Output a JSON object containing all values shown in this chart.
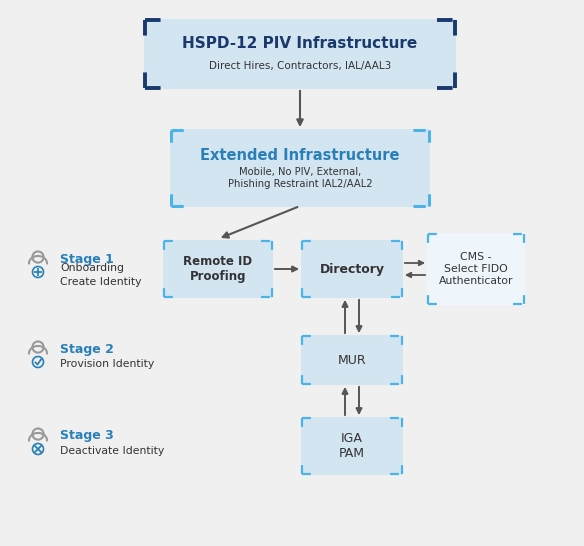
{
  "bg_color": "#f0f0f0",
  "box_fill_light": "#d4e5f2",
  "box_fill_white": "#eef5fb",
  "border_dark_blue": "#1a3a6b",
  "border_light_blue": "#4ab3e8",
  "text_dark": "#333333",
  "text_blue": "#2980b9",
  "arrow_color": "#555555",
  "title1": "HSPD-12 PIV Infrastructure",
  "subtitle1": "Direct Hires, Contractors, IAL/AAL3",
  "title2": "Extended Infrastructure",
  "subtitle2": "Mobile, No PIV, External,\nPhishing Restraint IAL2/AAL2",
  "box3": "Remote ID\nProofing",
  "box4": "Directory",
  "box5": "CMS -\nSelect FIDO\nAuthenticator",
  "box6": "MUR",
  "box7": "IGA\nPAM",
  "stage1_label": "Stage 1",
  "stage1_sub": "Onboarding\nCreate Identity",
  "stage2_label": "Stage 2",
  "stage2_sub": "Provision Identity",
  "stage3_label": "Stage 3",
  "stage3_sub": "Deactivate Identity",
  "figw": 5.84,
  "figh": 5.46,
  "dpi": 100
}
